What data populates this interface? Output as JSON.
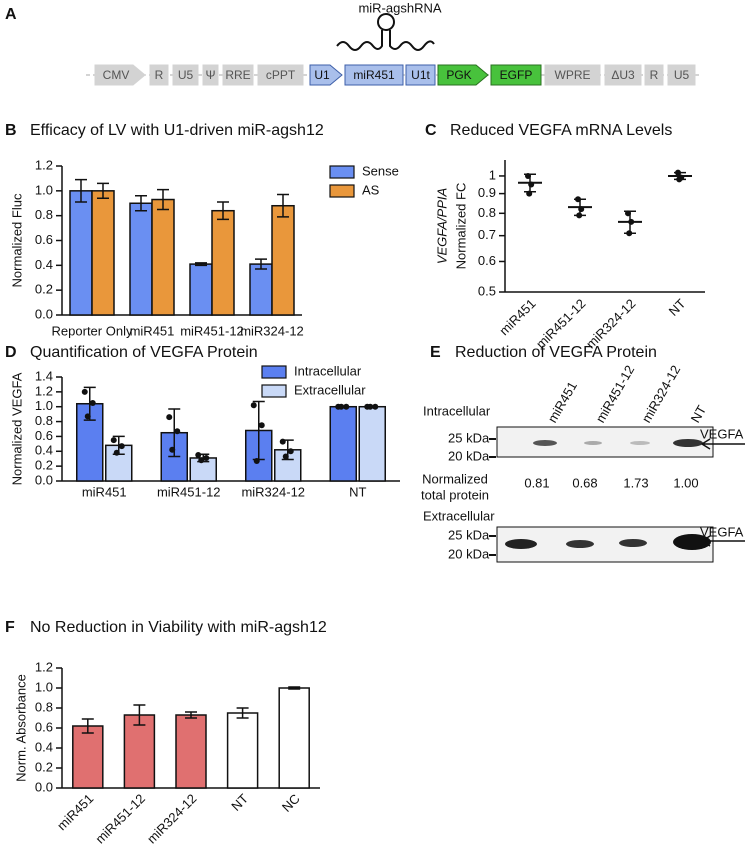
{
  "panel_a": {
    "label": "A",
    "hairpin_label": "miR-agshRNA",
    "elements": [
      "CMV",
      "R",
      "U5",
      "Ψ",
      "RRE",
      "cPPT",
      "U1",
      "miR451",
      "U1t",
      "PGK",
      "EGFP",
      "WPRE",
      "ΔU3",
      "R",
      "U5"
    ]
  },
  "panel_e": {
    "label": "E",
    "title": "Reduction of VEGFA Protein",
    "lanes": [
      "miR451",
      "miR451-12",
      "miR324-12",
      "NT"
    ],
    "blots": [
      {
        "label": "Intracellular",
        "markers": [
          "25 kDa",
          "20 kDa"
        ],
        "band": "VEGFA"
      },
      {
        "label": "Extracellular",
        "markers": [
          "25 kDa",
          "20 kDa"
        ],
        "band": "VEGFA"
      }
    ],
    "total_protein": {
      "label": [
        "Normalized",
        "total protein"
      ],
      "values": [
        "0.81",
        "0.68",
        "1.73",
        "1.00"
      ]
    }
  },
  "chart_data": [
    {
      "type": "bar",
      "label": "B",
      "title": "Efficacy of LV with U1-driven miR-agsh12",
      "ylabel": "Normalized Fluc",
      "categories": [
        "Reporter Only",
        "miR451",
        "miR451-12",
        "miR324-12"
      ],
      "series": [
        {
          "name": "Sense",
          "color": "#6a8ff2",
          "values": [
            1.0,
            0.9,
            0.41,
            0.41
          ],
          "errors": [
            0.09,
            0.06,
            0.01,
            0.04
          ]
        },
        {
          "name": "AS",
          "color": "#e9973b",
          "values": [
            1.0,
            0.93,
            0.84,
            0.88
          ],
          "errors": [
            0.06,
            0.08,
            0.07,
            0.09
          ]
        }
      ],
      "ylim": [
        0,
        1.2
      ],
      "yticks": [
        {
          "value": 0,
          "label": "0.0"
        },
        0.2,
        0.4,
        0.6,
        0.8,
        {
          "value": 1,
          "label": "1.0"
        },
        1.2
      ],
      "legend": "upper right"
    },
    {
      "type": "dot",
      "label": "C",
      "title": "Reduced VEGFA mRNA Levels",
      "ylabel": [
        "VEGFA/PPIA",
        "Normalized FC"
      ],
      "categories": [
        "miR451",
        "miR451-12",
        "miR324-12",
        "NT"
      ],
      "values": [
        0.96,
        0.83,
        0.76,
        1.0
      ],
      "errors": [
        0.05,
        0.04,
        0.05,
        0.02
      ],
      "points": [
        [
          1.0,
          0.95,
          0.9
        ],
        [
          0.87,
          0.82,
          0.79
        ],
        [
          0.8,
          0.76,
          0.71
        ],
        [
          1.02,
          0.99,
          0.98
        ]
      ],
      "log_scale": true,
      "ylim": [
        0.5,
        1.1
      ],
      "yticks": [
        0.5,
        0.6,
        0.7,
        0.8,
        0.9,
        1
      ]
    },
    {
      "type": "bar",
      "label": "D",
      "title": "Quantification of VEGFA Protein",
      "ylabel": "Normalized VEGFA",
      "categories": [
        "miR451",
        "miR451-12",
        "miR324-12",
        "NT"
      ],
      "series": [
        {
          "name": "Intracellular",
          "color": "#5b7ff0",
          "values": [
            1.04,
            0.65,
            0.68,
            1.0
          ],
          "errors": [
            0.22,
            0.32,
            0.39,
            0
          ],
          "points": [
            [
              1.2,
              1.05,
              0.87
            ],
            [
              0.86,
              0.67,
              0.42
            ],
            [
              1.02,
              0.75,
              0.27
            ],
            [
              1.0,
              1.0,
              1.0
            ]
          ]
        },
        {
          "name": "Extracellular",
          "color": "#c9d9f7",
          "values": [
            0.48,
            0.31,
            0.42,
            1.0
          ],
          "errors": [
            0.12,
            0.05,
            0.13,
            0
          ],
          "points": [
            [
              0.55,
              0.47,
              0.38
            ],
            [
              0.35,
              0.31,
              0.28
            ],
            [
              0.53,
              0.4,
              0.33
            ],
            [
              1.0,
              1.0,
              1.0
            ]
          ]
        }
      ],
      "ylim": [
        0,
        1.4
      ],
      "yticks": [
        {
          "value": 0,
          "label": "0.0"
        },
        0.2,
        0.4,
        0.6,
        0.8,
        {
          "value": 1,
          "label": "1.0"
        },
        1.2,
        1.4
      ],
      "legend": "upper right"
    },
    {
      "type": "bar",
      "label": "F",
      "title": "No Reduction in Viability with miR-agsh12",
      "ylabel": "Norm. Absorbance",
      "categories": [
        "miR451",
        "miR451-12",
        "miR324-12",
        "NT",
        "NC"
      ],
      "values": [
        0.62,
        0.73,
        0.73,
        0.75,
        1.0
      ],
      "errors": [
        0.07,
        0.1,
        0.03,
        0.05,
        0.01
      ],
      "colors": [
        "#e07070",
        "#e07070",
        "#e07070",
        "#ffffff",
        "#ffffff"
      ],
      "ylim": [
        0,
        1.2
      ],
      "yticks": [
        {
          "value": 0,
          "label": "0.0"
        },
        0.2,
        0.4,
        0.6,
        0.8,
        {
          "value": 1,
          "label": "1.0"
        },
        1.2
      ]
    }
  ]
}
